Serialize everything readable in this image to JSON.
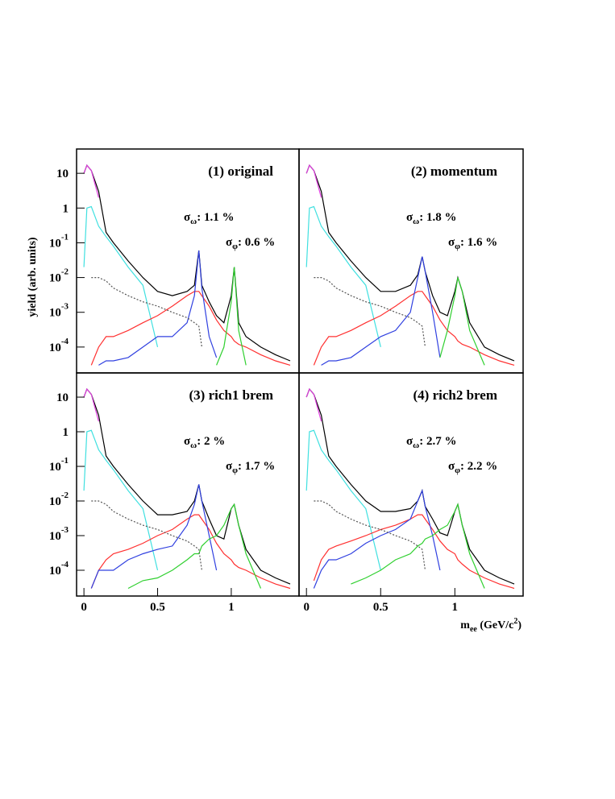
{
  "chart_data": [
    {
      "type": "line",
      "title": "(1) original",
      "log_y": true,
      "ylabel": "yield (arb. units)",
      "annotations": [
        {
          "symbol": "σ",
          "sub": "ω",
          "text": ": 1.1 %"
        },
        {
          "symbol": "σ",
          "sub": "φ",
          "text": ": 0.6 %"
        }
      ],
      "xlim": [
        -0.05,
        1.46
      ],
      "ylim": [
        1.8e-05,
        50
      ],
      "yticks": [
        10,
        1,
        {
          "value": 0.1,
          "label": "10",
          "exponent": "-1"
        },
        {
          "value": 0.01,
          "label": "10",
          "exponent": "-2"
        },
        {
          "value": 0.001,
          "label": "10",
          "exponent": "-3"
        },
        {
          "value": 0.0001,
          "label": "10",
          "exponent": "-4"
        }
      ],
      "x": [
        0,
        0.02,
        0.05,
        0.1,
        0.15,
        0.2,
        0.3,
        0.4,
        0.5,
        0.6,
        0.7,
        0.75,
        0.78,
        0.8,
        0.85,
        0.9,
        0.95,
        1.0,
        1.02,
        1.05,
        1.1,
        1.2,
        1.3,
        1.4
      ],
      "series": [
        {
          "color": "#000000",
          "values": [
            10,
            17,
            12,
            3,
            0.2,
            0.1,
            0.03,
            0.01,
            0.004,
            0.003,
            0.004,
            0.006,
            0.06,
            0.006,
            0.002,
            0.0008,
            0.0005,
            0.003,
            0.02,
            0.0005,
            0.0002,
            0.0001,
            6e-05,
            4e-05
          ]
        },
        {
          "color": "#e040e0",
          "values": [
            10,
            17,
            12,
            2,
            null,
            null,
            null,
            null,
            null,
            null,
            null,
            null,
            null,
            null,
            null,
            null,
            null,
            null,
            null,
            null,
            null,
            null,
            null,
            null
          ]
        },
        {
          "color": "#40e0e0",
          "values": [
            0.02,
            1,
            1.1,
            0.3,
            0.15,
            0.08,
            0.02,
            0.006,
            0.0001,
            null,
            null,
            null,
            null,
            null,
            null,
            null,
            null,
            null,
            null,
            null,
            null,
            null,
            null,
            null
          ]
        },
        {
          "color": "#ff3030",
          "values": [
            null,
            null,
            3e-05,
            0.0001,
            0.0002,
            0.0002,
            0.0003,
            0.0005,
            0.0008,
            0.0015,
            0.003,
            0.004,
            0.004,
            0.003,
            0.0015,
            0.0006,
            0.0003,
            0.0002,
            0.00015,
            0.00012,
            0.0001,
            6e-05,
            4e-05,
            3e-05
          ]
        },
        {
          "color": "#3040e0",
          "values": [
            null,
            null,
            null,
            3e-05,
            4e-05,
            4e-05,
            5e-05,
            0.0001,
            0.0002,
            0.0002,
            0.0005,
            0.003,
            0.06,
            0.005,
            0.0002,
            5e-05,
            null,
            null,
            null,
            null,
            null,
            null,
            null,
            null
          ]
        },
        {
          "color": "#30d030",
          "values": [
            null,
            null,
            null,
            null,
            null,
            null,
            null,
            null,
            null,
            null,
            null,
            null,
            null,
            null,
            null,
            3e-05,
            0.0001,
            0.002,
            0.02,
            0.0003,
            3e-05,
            null,
            null,
            null
          ]
        },
        {
          "color": "#555555",
          "dashed": true,
          "values": [
            null,
            null,
            0.01,
            0.01,
            0.008,
            0.005,
            0.003,
            0.002,
            0.0015,
            0.001,
            0.0007,
            0.0005,
            0.0004,
            0.0001,
            null,
            null,
            null,
            null,
            null,
            null,
            null,
            null,
            null,
            null
          ]
        }
      ]
    },
    {
      "type": "line",
      "title": "(2) momentum",
      "log_y": true,
      "annotations": [
        {
          "symbol": "σ",
          "sub": "ω",
          "text": ": 1.8 %"
        },
        {
          "symbol": "σ",
          "sub": "φ",
          "text": ": 1.6 %"
        }
      ],
      "xlim": [
        -0.05,
        1.46
      ],
      "ylim": [
        1.8e-05,
        50
      ],
      "x": [
        0,
        0.02,
        0.05,
        0.1,
        0.15,
        0.2,
        0.3,
        0.4,
        0.5,
        0.6,
        0.7,
        0.75,
        0.78,
        0.8,
        0.85,
        0.9,
        0.95,
        1.0,
        1.02,
        1.05,
        1.1,
        1.2,
        1.3,
        1.4
      ],
      "series": [
        {
          "color": "#000000",
          "values": [
            10,
            17,
            12,
            3,
            0.2,
            0.1,
            0.03,
            0.01,
            0.004,
            0.004,
            0.006,
            0.012,
            0.04,
            0.015,
            0.003,
            0.001,
            0.0008,
            0.004,
            0.01,
            0.004,
            0.0005,
            0.0001,
            6e-05,
            4e-05
          ]
        },
        {
          "color": "#e040e0",
          "values": [
            10,
            17,
            12,
            2,
            null,
            null,
            null,
            null,
            null,
            null,
            null,
            null,
            null,
            null,
            null,
            null,
            null,
            null,
            null,
            null,
            null,
            null,
            null,
            null
          ]
        },
        {
          "color": "#40e0e0",
          "values": [
            0.02,
            1,
            1.1,
            0.3,
            0.15,
            0.08,
            0.02,
            0.006,
            0.0001,
            null,
            null,
            null,
            null,
            null,
            null,
            null,
            null,
            null,
            null,
            null,
            null,
            null,
            null,
            null
          ]
        },
        {
          "color": "#ff3030",
          "values": [
            null,
            null,
            3e-05,
            0.0001,
            0.0002,
            0.0002,
            0.0003,
            0.0005,
            0.0008,
            0.0015,
            0.003,
            0.004,
            0.004,
            0.003,
            0.0015,
            0.0006,
            0.0003,
            0.0002,
            0.00015,
            0.00012,
            0.0001,
            6e-05,
            4e-05,
            3e-05
          ]
        },
        {
          "color": "#3040e0",
          "values": [
            null,
            null,
            null,
            3e-05,
            4e-05,
            4e-05,
            5e-05,
            0.0001,
            0.0002,
            0.0003,
            0.001,
            0.01,
            0.04,
            0.015,
            0.001,
            5e-05,
            null,
            null,
            null,
            null,
            null,
            null,
            null,
            null
          ]
        },
        {
          "color": "#30d030",
          "values": [
            null,
            null,
            null,
            null,
            null,
            null,
            null,
            null,
            null,
            null,
            null,
            null,
            null,
            null,
            null,
            5e-05,
            0.0003,
            0.003,
            0.01,
            0.004,
            0.0003,
            3e-05,
            null,
            null
          ]
        },
        {
          "color": "#555555",
          "dashed": true,
          "values": [
            null,
            null,
            0.01,
            0.01,
            0.008,
            0.005,
            0.003,
            0.002,
            0.0015,
            0.001,
            0.0007,
            0.0005,
            0.0004,
            0.0001,
            null,
            null,
            null,
            null,
            null,
            null,
            null,
            null,
            null,
            null
          ]
        }
      ]
    },
    {
      "type": "line",
      "title": "(3) rich1 brem",
      "log_y": true,
      "annotations": [
        {
          "symbol": "σ",
          "sub": "ω",
          "text": ": 2 %"
        },
        {
          "symbol": "σ",
          "sub": "φ",
          "text": ": 1.7 %"
        }
      ],
      "xlim": [
        -0.05,
        1.46
      ],
      "ylim": [
        1.8e-05,
        50
      ],
      "xticks": [
        0,
        0.5,
        1
      ],
      "yticks": [
        10,
        1,
        {
          "value": 0.1,
          "label": "10",
          "exponent": "-1"
        },
        {
          "value": 0.01,
          "label": "10",
          "exponent": "-2"
        },
        {
          "value": 0.001,
          "label": "10",
          "exponent": "-3"
        },
        {
          "value": 0.0001,
          "label": "10",
          "exponent": "-4"
        }
      ],
      "x": [
        0,
        0.02,
        0.05,
        0.1,
        0.15,
        0.2,
        0.3,
        0.4,
        0.5,
        0.6,
        0.7,
        0.75,
        0.78,
        0.8,
        0.85,
        0.9,
        0.95,
        1.0,
        1.02,
        1.05,
        1.1,
        1.2,
        1.3,
        1.4
      ],
      "series": [
        {
          "color": "#000000",
          "values": [
            10,
            17,
            12,
            3,
            0.2,
            0.1,
            0.03,
            0.01,
            0.004,
            0.004,
            0.005,
            0.01,
            0.03,
            0.01,
            0.003,
            0.001,
            0.0008,
            0.006,
            0.008,
            0.002,
            0.0004,
            0.0001,
            6e-05,
            4e-05
          ]
        },
        {
          "color": "#e040e0",
          "values": [
            10,
            17,
            12,
            2,
            null,
            null,
            null,
            null,
            null,
            null,
            null,
            null,
            null,
            null,
            null,
            null,
            null,
            null,
            null,
            null,
            null,
            null,
            null,
            null
          ]
        },
        {
          "color": "#40e0e0",
          "values": [
            0.02,
            1,
            1.1,
            0.3,
            0.15,
            0.08,
            0.02,
            0.006,
            0.0001,
            null,
            null,
            null,
            null,
            null,
            null,
            null,
            null,
            null,
            null,
            null,
            null,
            null,
            null,
            null
          ]
        },
        {
          "color": "#ff3030",
          "values": [
            null,
            null,
            3e-05,
            0.0001,
            0.0002,
            0.0003,
            0.0004,
            0.0006,
            0.001,
            0.0015,
            0.003,
            0.004,
            0.004,
            0.003,
            0.0015,
            0.0006,
            0.0003,
            0.0002,
            0.00015,
            0.00012,
            0.0001,
            6e-05,
            4e-05,
            3e-05
          ]
        },
        {
          "color": "#3040e0",
          "values": [
            null,
            null,
            3e-05,
            0.0001,
            0.0001,
            0.0001,
            0.0002,
            0.0003,
            0.0004,
            0.0005,
            0.002,
            0.008,
            0.03,
            0.01,
            0.001,
            0.0001,
            null,
            null,
            null,
            null,
            null,
            null,
            null,
            null
          ]
        },
        {
          "color": "#30d030",
          "values": [
            null,
            null,
            null,
            null,
            null,
            null,
            3e-05,
            5e-05,
            6e-05,
            0.0001,
            0.0002,
            0.0003,
            0.0003,
            0.0005,
            0.0008,
            0.001,
            0.002,
            0.006,
            0.008,
            0.002,
            0.0003,
            3e-05,
            null,
            null
          ]
        },
        {
          "color": "#555555",
          "dashed": true,
          "values": [
            null,
            null,
            0.01,
            0.01,
            0.008,
            0.005,
            0.003,
            0.002,
            0.0015,
            0.001,
            0.0007,
            0.0005,
            0.0004,
            0.0001,
            null,
            null,
            null,
            null,
            null,
            null,
            null,
            null,
            null,
            null
          ]
        }
      ]
    },
    {
      "type": "line",
      "title": "(4) rich2 brem",
      "log_y": true,
      "xlabel": {
        "main": "m",
        "sub": "ee",
        "unit": " (GeV/c",
        "sup": "2",
        "close": ")"
      },
      "annotations": [
        {
          "symbol": "σ",
          "sub": "ω",
          "text": ": 2.7 %"
        },
        {
          "symbol": "σ",
          "sub": "φ",
          "text": ": 2.2 %"
        }
      ],
      "xlim": [
        -0.05,
        1.46
      ],
      "ylim": [
        1.8e-05,
        50
      ],
      "xticks": [
        0,
        0.5,
        1
      ],
      "x": [
        0,
        0.02,
        0.05,
        0.1,
        0.15,
        0.2,
        0.3,
        0.4,
        0.5,
        0.6,
        0.7,
        0.75,
        0.78,
        0.8,
        0.85,
        0.9,
        0.95,
        1.0,
        1.02,
        1.05,
        1.1,
        1.2,
        1.3,
        1.4
      ],
      "series": [
        {
          "color": "#000000",
          "values": [
            10,
            17,
            12,
            3,
            0.2,
            0.1,
            0.03,
            0.01,
            0.005,
            0.005,
            0.006,
            0.01,
            0.02,
            0.007,
            0.003,
            0.0012,
            0.001,
            0.005,
            0.008,
            0.002,
            0.0004,
            0.0001,
            6e-05,
            4e-05
          ]
        },
        {
          "color": "#e040e0",
          "values": [
            10,
            17,
            12,
            2,
            null,
            null,
            null,
            null,
            null,
            null,
            null,
            null,
            null,
            null,
            null,
            null,
            null,
            null,
            null,
            null,
            null,
            null,
            null,
            null
          ]
        },
        {
          "color": "#40e0e0",
          "values": [
            0.02,
            1,
            1.1,
            0.3,
            0.15,
            0.08,
            0.02,
            0.006,
            0.0001,
            null,
            null,
            null,
            null,
            null,
            null,
            null,
            null,
            null,
            null,
            null,
            null,
            null,
            null,
            null
          ]
        },
        {
          "color": "#ff3030",
          "values": [
            null,
            null,
            5e-05,
            0.0002,
            0.0004,
            0.0005,
            0.0007,
            0.001,
            0.0015,
            0.002,
            0.003,
            0.004,
            0.004,
            0.003,
            0.0015,
            0.0007,
            0.0004,
            0.0003,
            0.0002,
            0.00015,
            0.0001,
            6e-05,
            4e-05,
            3e-05
          ]
        },
        {
          "color": "#3040e0",
          "values": [
            null,
            null,
            3e-05,
            0.0001,
            0.0002,
            0.0002,
            0.0003,
            0.0006,
            0.001,
            0.0015,
            0.003,
            0.01,
            0.02,
            0.007,
            0.001,
            0.0001,
            null,
            null,
            null,
            null,
            null,
            null,
            null,
            null
          ]
        },
        {
          "color": "#30d030",
          "values": [
            null,
            null,
            null,
            null,
            null,
            null,
            4e-05,
            6e-05,
            0.0001,
            0.0002,
            0.0003,
            0.0005,
            0.0006,
            0.0008,
            0.001,
            0.0015,
            0.002,
            0.005,
            0.008,
            0.002,
            0.0003,
            3e-05,
            null,
            null
          ]
        },
        {
          "color": "#555555",
          "dashed": true,
          "values": [
            null,
            null,
            0.01,
            0.01,
            0.008,
            0.005,
            0.003,
            0.002,
            0.0015,
            0.001,
            0.0007,
            0.0005,
            0.0004,
            0.0001,
            null,
            null,
            null,
            null,
            null,
            null,
            null,
            null,
            null,
            null
          ]
        }
      ]
    }
  ]
}
